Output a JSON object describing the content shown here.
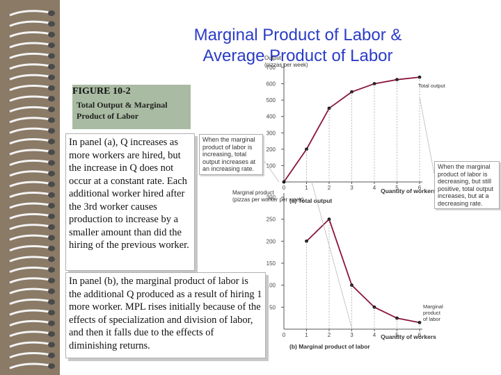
{
  "slide": {
    "title_line1": "Marginal Product of Labor &",
    "title_line2": "Average Product of Labor",
    "figure_label": "FIGURE 10-2",
    "figure_caption": "Total Output & Marginal Product of Labor",
    "panel_a_text": "In panel (a), Q increases as more workers are hired, but the increase in Q does not occur at a constant rate. Each additional worker hired after the 3rd worker causes production to increase by a smaller amount than did the hiring of the previous worker.",
    "panel_b_text": "In panel (b), the marginal product of labor is the additional Q produced as a result of hiring 1 more worker. MPL rises initially because of the effects of specialization and division of labor, and then it falls due to the effects of diminishing returns.",
    "callout_increasing": "When the marginal product of labor is increasing, total output increases at an increasing rate.",
    "callout_decreasing": "When the marginal product of labor is decreasing, but still positive, total output increases, but at a decreasing rate."
  },
  "colors": {
    "title": "#2a3cc8",
    "curve": "#8b1538",
    "point": "#1a1a1a",
    "figure_box": "#a9bba3",
    "background": "#8a7a66"
  },
  "chart_data": [
    {
      "type": "line",
      "title": "(a) Total output",
      "ylabel": "Output (pizzas per week)",
      "xlabel": "Quantity of workers",
      "x": [
        0,
        1,
        2,
        3,
        4,
        5,
        6
      ],
      "xticks": [
        "0",
        "1",
        "2",
        "3",
        "4",
        "5",
        "6"
      ],
      "yticks": [
        "100",
        "200",
        "300",
        "400",
        "500",
        "600",
        "700"
      ],
      "series": [
        {
          "name": "Total output",
          "values": [
            0,
            200,
            450,
            550,
            600,
            625,
            640
          ]
        }
      ],
      "ylim": [
        0,
        700
      ],
      "xlim": [
        0,
        6
      ],
      "grid": false
    },
    {
      "type": "line",
      "title": "(b) Marginal product of labor",
      "ylabel": "Marginal product (pizzas per worker per week)",
      "xlabel": "Quantity of workers",
      "x": [
        1,
        2,
        3,
        4,
        5,
        6
      ],
      "xticks": [
        "0",
        "1",
        "2",
        "3",
        "4",
        "5",
        "6"
      ],
      "yticks": [
        "50",
        "100",
        "150",
        "200",
        "250",
        "300"
      ],
      "series": [
        {
          "name": "Marginal product of labor",
          "values": [
            200,
            250,
            100,
            50,
            25,
            15
          ]
        }
      ],
      "ylim": [
        0,
        300
      ],
      "xlim": [
        0,
        6
      ],
      "grid": false
    }
  ]
}
